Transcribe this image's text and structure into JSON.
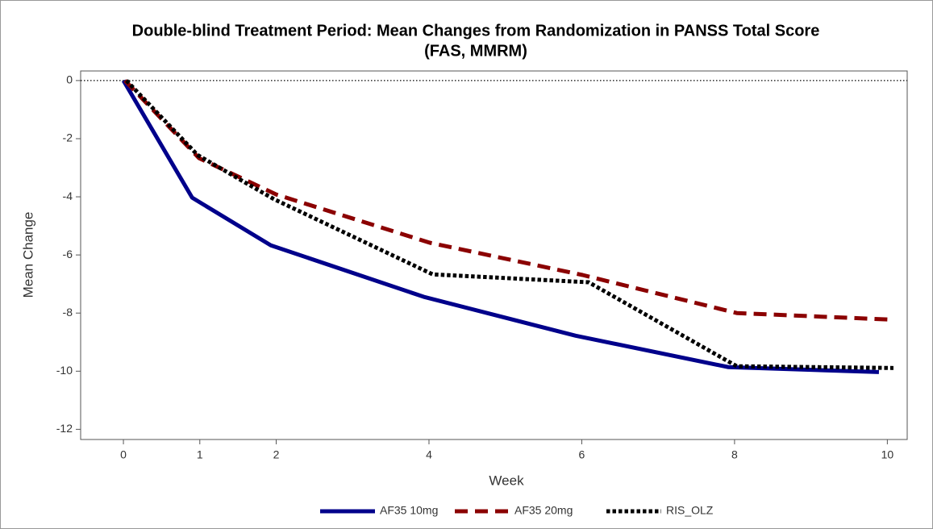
{
  "chart_data": {
    "type": "line",
    "title": [
      "Double-blind Treatment Period: Mean Changes from Randomization in PANSS Total Score",
      "(FAS, MMRM)"
    ],
    "x_label": "Week",
    "y_label": "Mean Change",
    "xlim": [
      -0.56,
      10.26
    ],
    "xticks": [
      0,
      1,
      2,
      4,
      6,
      8,
      10
    ],
    "ylim": [
      -12.35,
      0.33
    ],
    "yticks": [
      -12,
      -10,
      -8,
      -6,
      -4,
      -2,
      0
    ],
    "refline": 0,
    "legend": "bottom",
    "series": [
      {
        "name": "AF35 10mg",
        "color": "#00008b",
        "style": "solid",
        "x": [
          0,
          0.9,
          1.93,
          3.93,
          5.92,
          7.92,
          9.89
        ],
        "values": [
          0,
          -4.03,
          -5.67,
          -7.44,
          -8.78,
          -9.86,
          -10.03
        ]
      },
      {
        "name": "AF35 20mg",
        "color": "#8b0000",
        "style": "dashed",
        "x": [
          0.02,
          0.99,
          2.0,
          4.01,
          6.01,
          8.03,
          10.0
        ],
        "values": [
          0,
          -2.67,
          -3.92,
          -5.58,
          -6.69,
          -8.0,
          -8.22
        ]
      },
      {
        "name": "RIS_OLZ",
        "color": "#000000",
        "style": "dotted",
        "x": [
          0.04,
          0.97,
          1.97,
          4.05,
          6.09,
          8.03,
          10.08
        ],
        "values": [
          0,
          -2.56,
          -4.08,
          -6.67,
          -6.94,
          -9.83,
          -9.89
        ]
      }
    ]
  }
}
